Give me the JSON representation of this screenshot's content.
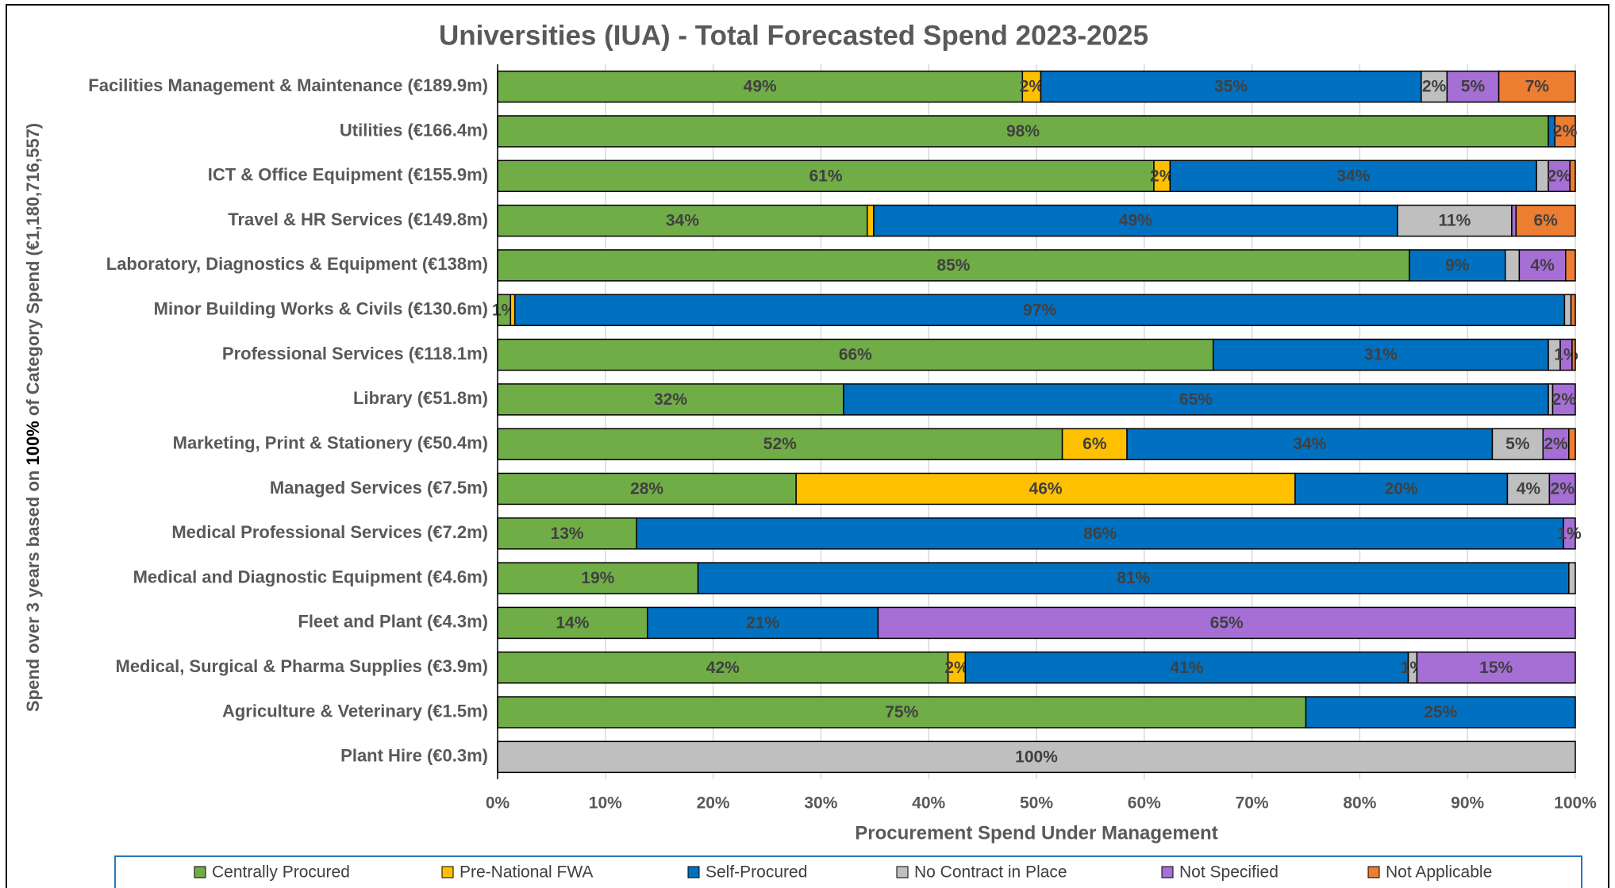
{
  "chart_data": {
    "type": "stacked_barh",
    "title": "Universities (IUA) - Total Forecasted Spend 2023-2025",
    "xlabel": "Procurement Spend Under Management",
    "ylabel": [
      "Spend over 3 years based on ",
      "100%",
      " of Category Spend (€1,180,716,557)"
    ],
    "categories": [
      "Facilities Management & Maintenance (€189.9m)",
      "Utilities (€166.4m)",
      "ICT & Office Equipment (€155.9m)",
      "Travel & HR Services (€149.8m)",
      "Laboratory, Diagnostics & Equipment (€138m)",
      "Minor Building Works & Civils (€130.6m)",
      "Professional Services (€118.1m)",
      "Library (€51.8m)",
      "Marketing, Print & Stationery (€50.4m)",
      "Managed Services (€7.5m)",
      "Medical Professional Services (€7.2m)",
      "Medical and Diagnostic Equipment (€4.6m)",
      "Fleet and Plant (€4.3m)",
      "Medical, Surgical & Pharma Supplies (€3.9m)",
      "Agriculture & Veterinary (€1.5m)",
      "Plant Hire (€0.3m)"
    ],
    "series": [
      {
        "name": "Centrally Procured",
        "color": "#70ad47",
        "values": [
          48.7,
          97.5,
          60.9,
          34.3,
          84.6,
          1.2,
          66.4,
          32.1,
          52.4,
          27.7,
          12.9,
          18.6,
          13.9,
          41.8,
          75,
          0
        ],
        "value_labels": [
          "49%",
          "98%",
          "61%",
          "34%",
          "85%",
          "1%",
          "66%",
          "32%",
          "52%",
          "28%",
          "13%",
          "19%",
          "14%",
          "42%",
          "75%",
          null
        ]
      },
      {
        "name": "Pre-National FWA",
        "color": "#ffc000",
        "values": [
          1.7,
          0,
          1.5,
          0.6,
          0,
          0.4,
          0,
          0,
          6.0,
          46.3,
          0,
          0,
          0,
          1.6,
          0,
          0
        ],
        "value_labels": [
          "2%",
          null,
          "2%",
          null,
          null,
          null,
          null,
          null,
          "6%",
          "46%",
          null,
          null,
          null,
          "2%",
          null,
          null
        ]
      },
      {
        "name": "Self-Procured",
        "color": "#0070c0",
        "values": [
          35.3,
          0.6,
          34.0,
          48.6,
          8.9,
          97.4,
          31.1,
          65.4,
          33.9,
          19.7,
          86.0,
          80.8,
          21.4,
          41.1,
          25,
          0
        ],
        "value_labels": [
          "35%",
          null,
          "34%",
          "49%",
          "9%",
          "97%",
          "31%",
          "65%",
          "34%",
          "20%",
          "86%",
          "81%",
          "21%",
          "41%",
          "25%",
          null
        ]
      },
      {
        "name": "No Contract in Place",
        "color": "#bfbfbf",
        "values": [
          2.4,
          0,
          1.1,
          10.6,
          1.3,
          0.6,
          1.1,
          0.4,
          4.7,
          3.9,
          0,
          0.6,
          0,
          0.8,
          0,
          100
        ],
        "value_labels": [
          "2%",
          null,
          null,
          "11%",
          null,
          null,
          null,
          null,
          "5%",
          "4%",
          null,
          null,
          null,
          "1%",
          null,
          "100%"
        ]
      },
      {
        "name": "Not Specified",
        "color": "#a66fd6",
        "values": [
          4.8,
          0,
          2.0,
          0.4,
          4.3,
          0,
          1.1,
          2.1,
          2.4,
          2.4,
          1.1,
          0,
          64.7,
          14.7,
          0,
          0
        ],
        "value_labels": [
          "5%",
          null,
          "2%",
          null,
          "4%",
          null,
          "1%",
          "2%",
          "2%",
          "2%",
          "1%",
          null,
          "65%",
          "15%",
          null,
          null
        ]
      },
      {
        "name": "Not Applicable",
        "color": "#ed7d31",
        "values": [
          7.1,
          1.9,
          0.5,
          5.5,
          0.9,
          0.4,
          0.3,
          0,
          0.6,
          0,
          0,
          0,
          0,
          0,
          0,
          0
        ],
        "value_labels": [
          "7%",
          "2%",
          null,
          "6%",
          null,
          null,
          null,
          null,
          null,
          null,
          null,
          null,
          null,
          null,
          null,
          null
        ]
      }
    ],
    "xlim": [
      0,
      100
    ],
    "xticks": [
      {
        "value": 0,
        "label": "0%"
      },
      {
        "value": 10,
        "label": "10%"
      },
      {
        "value": 20,
        "label": "20%"
      },
      {
        "value": 30,
        "label": "30%"
      },
      {
        "value": 40,
        "label": "40%"
      },
      {
        "value": 50,
        "label": "50%"
      },
      {
        "value": 60,
        "label": "60%"
      },
      {
        "value": 70,
        "label": "70%"
      },
      {
        "value": 80,
        "label": "80%"
      },
      {
        "value": 90,
        "label": "90%"
      },
      {
        "value": 100,
        "label": "100%"
      }
    ],
    "grid": true,
    "legend": "bottom"
  }
}
